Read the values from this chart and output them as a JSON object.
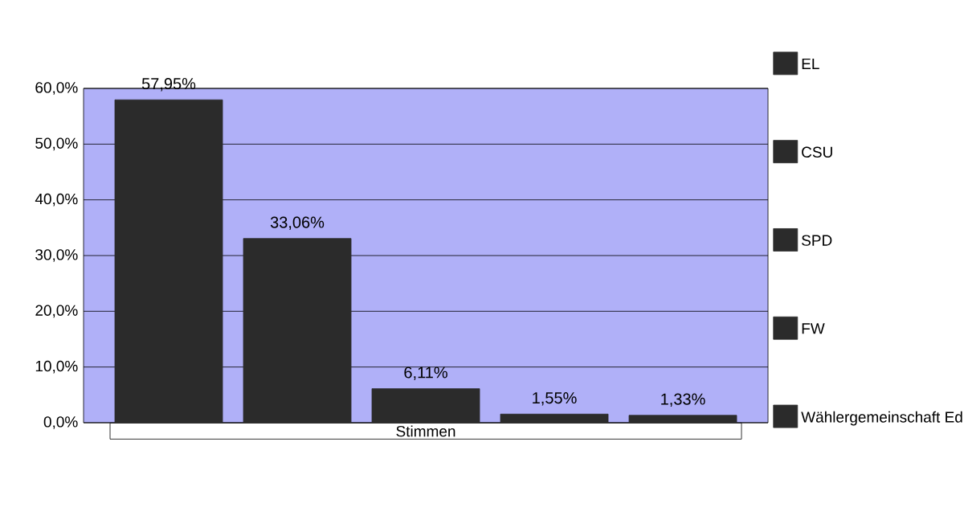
{
  "chart_data": {
    "type": "bar",
    "categories": [
      "Stimmen"
    ],
    "series": [
      {
        "name": "EL",
        "color": "#2b2b2b",
        "values": [
          57.95
        ],
        "value_labels": [
          "57,95%"
        ]
      },
      {
        "name": "CSU",
        "color": "#2b2b2b",
        "values": [
          33.06
        ],
        "value_labels": [
          "33,06%"
        ]
      },
      {
        "name": "SPD",
        "color": "#2b2b2b",
        "values": [
          6.11
        ],
        "value_labels": [
          "6,11%"
        ]
      },
      {
        "name": "FW",
        "color": "#2b2b2b",
        "values": [
          1.55
        ],
        "value_labels": [
          "1,55%"
        ]
      },
      {
        "name": "Wählergemeinschaft Ed",
        "color": "#2b2b2b",
        "values": [
          1.33
        ],
        "value_labels": [
          "1,33%"
        ]
      }
    ],
    "ylim": [
      0,
      60
    ],
    "yticks": [
      {
        "value": 0,
        "label": "0,0%"
      },
      {
        "value": 10,
        "label": "10,0%"
      },
      {
        "value": 20,
        "label": "20,0%"
      },
      {
        "value": 30,
        "label": "30,0%"
      },
      {
        "value": 40,
        "label": "40,0%"
      },
      {
        "value": 50,
        "label": "50,0%"
      },
      {
        "value": 60,
        "label": "60,0%"
      }
    ],
    "grid": "y",
    "legend": "right"
  }
}
